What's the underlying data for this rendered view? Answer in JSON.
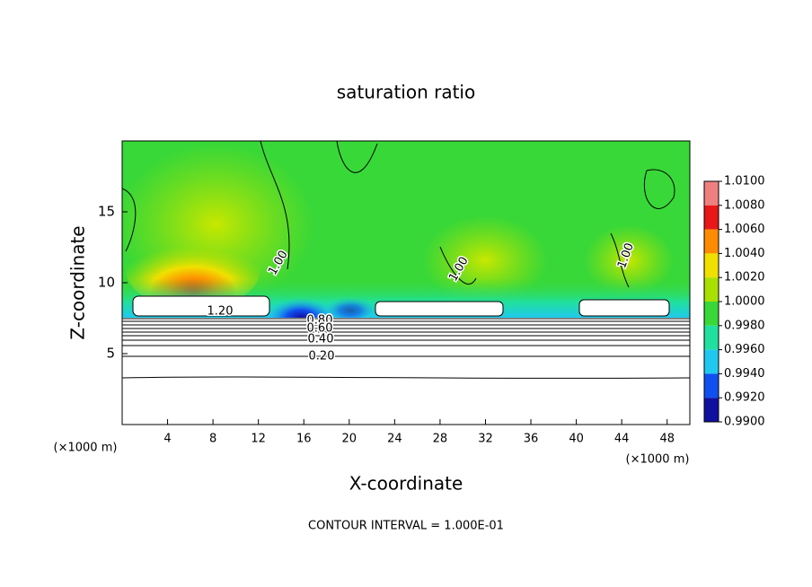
{
  "chart_data": {
    "type": "contour",
    "title": "saturation ratio",
    "x_label": "X-coordinate",
    "y_label": "Z-coordinate",
    "x_unit": "(×1000 m)",
    "footer": "CONTOUR INTERVAL = 1.000E-01",
    "xlim": [
      0,
      50
    ],
    "ylim": [
      0,
      20
    ],
    "xticks": [
      4,
      8,
      12,
      16,
      20,
      24,
      28,
      32,
      36,
      40,
      44,
      48
    ],
    "yticks": [
      5,
      10,
      15
    ],
    "colorbar": {
      "ticks": [
        {
          "value": 1.01,
          "label": "1.0100"
        },
        {
          "value": 1.008,
          "label": "1.0080"
        },
        {
          "value": 1.006,
          "label": "1.0060"
        },
        {
          "value": 1.004,
          "label": "1.0040"
        },
        {
          "value": 1.002,
          "label": "1.0020"
        },
        {
          "value": 1.0,
          "label": "1.0000"
        },
        {
          "value": 0.998,
          "label": "0.9980"
        },
        {
          "value": 0.996,
          "label": "0.9960"
        },
        {
          "value": 0.994,
          "label": "0.9940"
        },
        {
          "value": 0.992,
          "label": "0.9920"
        },
        {
          "value": 0.99,
          "label": "0.9900"
        }
      ],
      "colors": [
        "#f08080",
        "#e81818",
        "#ff8c00",
        "#f0e000",
        "#a8e000",
        "#38d838",
        "#20e0a0",
        "#20c8f0",
        "#1050f0",
        "#1010a0"
      ]
    },
    "contour_labels": [
      {
        "value": 1.0,
        "label": "1.00"
      },
      {
        "value": 1.0,
        "label": "1.00"
      },
      {
        "value": 1.0,
        "label": "1.00"
      },
      {
        "value": 1.2,
        "label": "1.20"
      },
      {
        "value": 0.8,
        "label": "0.80"
      },
      {
        "value": 0.6,
        "label": "0.60"
      },
      {
        "value": 0.4,
        "label": "0.40"
      },
      {
        "value": 0.2,
        "label": "0.20"
      }
    ]
  }
}
